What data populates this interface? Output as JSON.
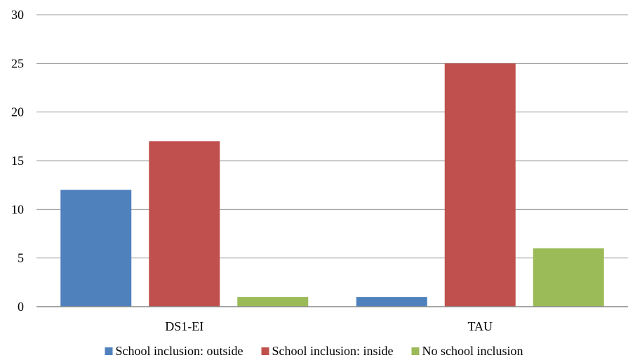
{
  "chart_data": {
    "type": "bar",
    "categories": [
      "DS1-EI",
      "TAU"
    ],
    "series": [
      {
        "name": "School inclusion: outside",
        "values": [
          12,
          1
        ],
        "color": "#4F81BD"
      },
      {
        "name": "School inclusion: inside",
        "values": [
          17,
          25
        ],
        "color": "#C0504D"
      },
      {
        "name": "No school inclusion",
        "values": [
          1,
          6
        ],
        "color": "#9BBB59"
      }
    ],
    "ylim": [
      0,
      30
    ],
    "yticks": [
      0,
      5,
      10,
      15,
      20,
      25,
      30
    ],
    "grid": true,
    "legend": "bottom",
    "gridline_color": "#999999",
    "title": "",
    "xlabel": "",
    "ylabel": ""
  }
}
